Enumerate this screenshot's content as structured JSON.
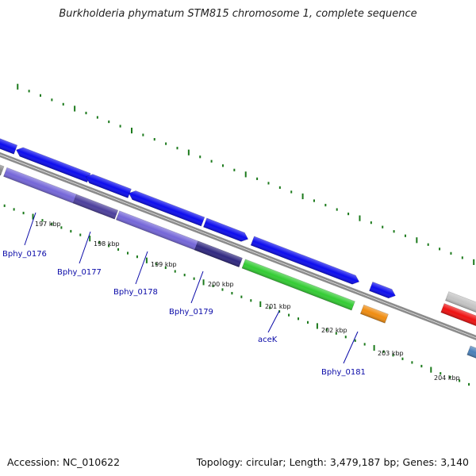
{
  "title": "Burkholderia phymatum STM815 chromosome 1, complete sequence",
  "footer": {
    "accession": "Accession: NC_010622",
    "topology": "Topology: circular; Length: 3,479,187 bp; Genes: 3,140"
  },
  "colors": {
    "backbone": "#8c8c8c",
    "tick": "#1c7a1c",
    "label": "#0a0aa8",
    "cds_forward": "#0c0cee",
    "cds_reverse": "#7466d8",
    "cds_dark": "#302880",
    "cds_reverse_dark": "#4c3f9c",
    "cds_gray": "#8a8a8a",
    "cds_green": "#33cc33",
    "cds_orange": "#f08c10",
    "cds_red": "#ee1111",
    "cds_light_gray": "#c4c4c4",
    "cds_steel": "#4a7fb8"
  },
  "scale_labels": [
    "197 kbp",
    "198 kbp",
    "199 kbp",
    "200 kbp",
    "201 kbp",
    "202 kbp",
    "203 kbp",
    "204 kbp"
  ],
  "gene_labels": [
    "Bphy_0176",
    "Bphy_0177",
    "Bphy_0178",
    "Bphy_0179",
    "aceK",
    "Bphy_0181"
  ]
}
